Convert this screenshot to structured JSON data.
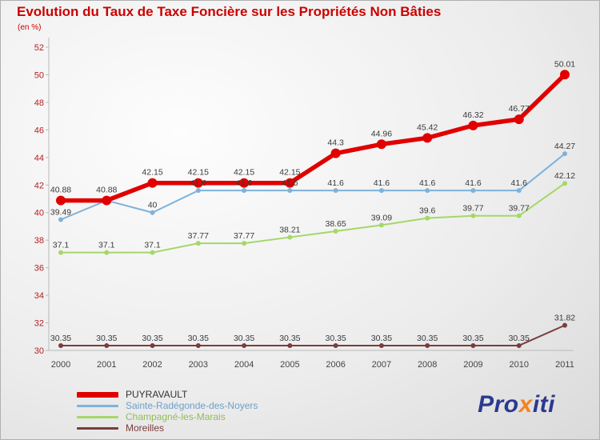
{
  "title": "Evolution du Taux de Taxe Foncière sur les Propriétés Non Bâties",
  "subtitle": "(en %)",
  "colors": {
    "title": "#cc0000",
    "y_axis_labels": "#b22222",
    "x_axis_labels": "#444444",
    "value_labels": "#3a3a3a",
    "axis_line": "#b9b9b9",
    "background": "#ececec"
  },
  "chart_data": {
    "type": "line",
    "title": "Evolution du Taux de Taxe Foncière sur les Propriétés Non Bâties",
    "unit": "(en %)",
    "x": [
      2000,
      2001,
      2002,
      2003,
      2004,
      2005,
      2006,
      2007,
      2008,
      2009,
      2010,
      2011
    ],
    "ylim": [
      30,
      52
    ],
    "yticks": [
      30,
      32,
      34,
      36,
      38,
      40,
      42,
      44,
      46,
      48,
      50,
      52
    ],
    "grid": false,
    "legend_position": "bottom-left",
    "series": [
      {
        "name": "PUYRAVAULT",
        "color": "#e10000",
        "label_color": "#333333",
        "line_width": 5.5,
        "point_radius": 6,
        "legend_thickness": 7,
        "label_offset": 10,
        "values": [
          40.88,
          40.88,
          42.15,
          42.15,
          42.15,
          42.15,
          44.3,
          44.96,
          45.42,
          46.32,
          46.77,
          50.01
        ],
        "labels": [
          "40.88",
          "40.88",
          "42.15",
          "42.15",
          "42.15",
          "42.15",
          "44.3",
          "44.96",
          "45.42",
          "46.32",
          "46.77",
          "50.01"
        ]
      },
      {
        "name": "Sainte-Radégonde-des-Noyers",
        "color": "#7fb2d9",
        "label_color": "#6f9fc8",
        "line_width": 2,
        "point_radius": 3,
        "legend_thickness": 3,
        "label_offset": 6,
        "values": [
          39.49,
          40.88,
          40,
          41.6,
          41.6,
          41.6,
          41.6,
          41.6,
          41.6,
          41.6,
          41.6,
          44.27
        ],
        "labels": [
          "39.49",
          null,
          "40",
          "41.6",
          "41.6",
          "41.6",
          "41.6",
          "41.6",
          "41.6",
          "41.6",
          "41.6",
          "44.27"
        ]
      },
      {
        "name": "Champagné-les-Marais",
        "color": "#a5d768",
        "label_color": "#8fbf55",
        "line_width": 2,
        "point_radius": 3,
        "legend_thickness": 3,
        "label_offset": 6,
        "values": [
          37.1,
          37.1,
          37.1,
          37.77,
          37.77,
          38.21,
          38.65,
          39.09,
          39.6,
          39.77,
          39.77,
          42.12
        ],
        "labels": [
          "37.1",
          "37.1",
          "37.1",
          "37.77",
          "37.77",
          "38.21",
          "38.65",
          "39.09",
          "39.6",
          "39.77",
          "39.77",
          "42.12"
        ]
      },
      {
        "name": "Moreilles",
        "color": "#7b3c3c",
        "label_color": "#7b3c3c",
        "line_width": 2,
        "point_radius": 3,
        "legend_thickness": 3,
        "label_offset": 6,
        "values": [
          30.35,
          30.35,
          30.35,
          30.35,
          30.35,
          30.35,
          30.35,
          30.35,
          30.35,
          30.35,
          30.35,
          31.82
        ],
        "labels": [
          "30.35",
          "30.35",
          "30.35",
          "30.35",
          "30.35",
          "30.35",
          "30.35",
          "30.35",
          "30.35",
          "30.35",
          "30.35",
          "31.82"
        ]
      }
    ]
  },
  "logo": {
    "parts": [
      {
        "text": "Pro",
        "color": "#2b3990"
      },
      {
        "text": "x",
        "color": "#f5821f"
      },
      {
        "text": "iti",
        "color": "#2b3990"
      }
    ]
  }
}
